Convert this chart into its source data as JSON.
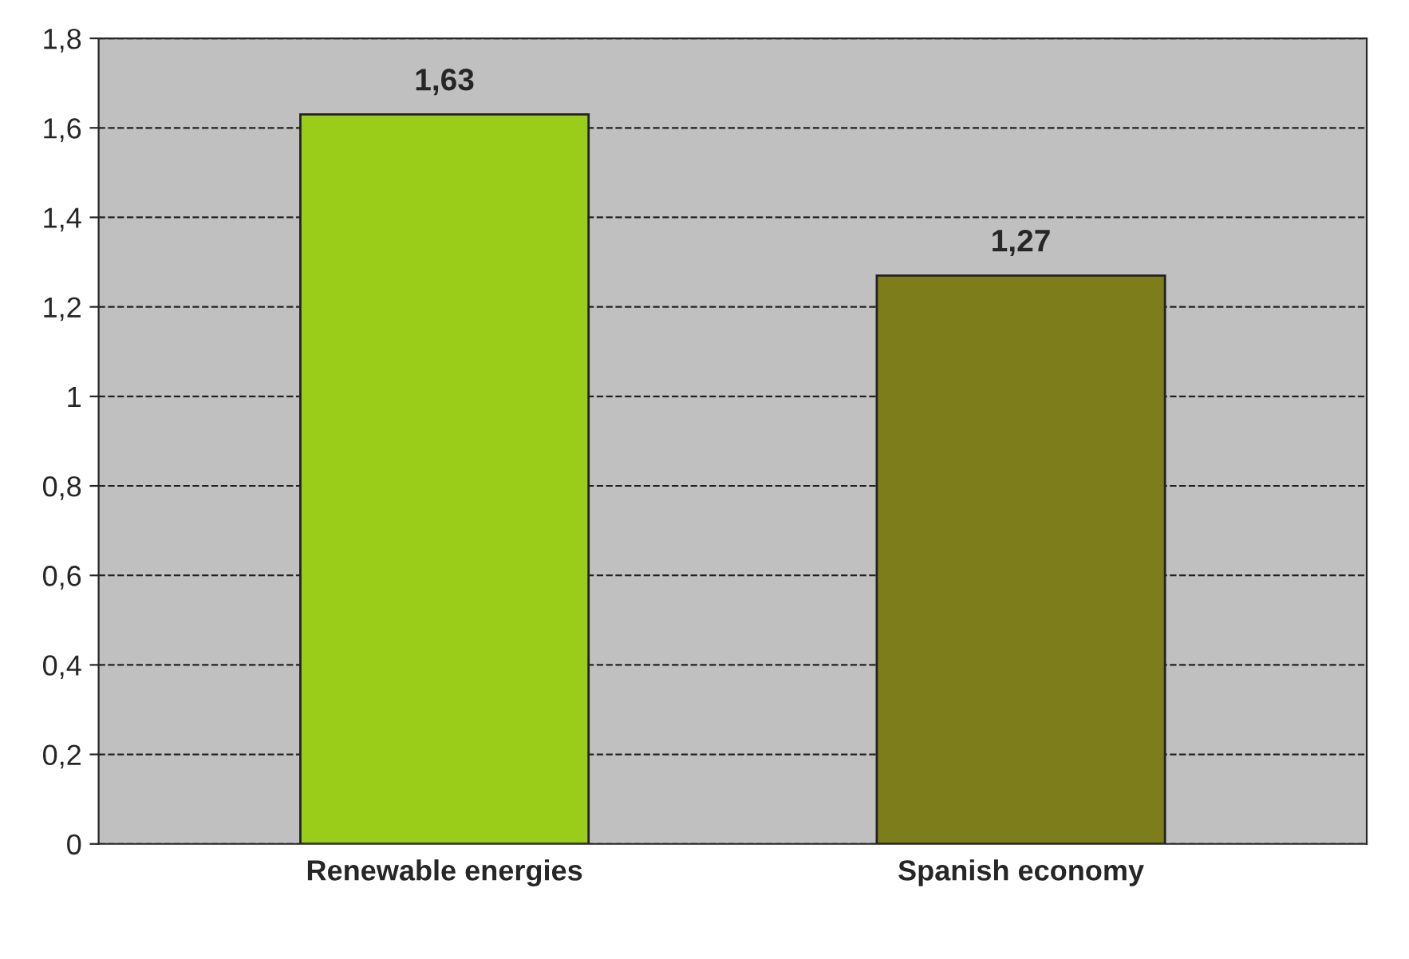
{
  "chart_data": {
    "type": "bar",
    "categories": [
      "Renewable energies",
      "Spanish economy"
    ],
    "values": [
      1.63,
      1.27
    ],
    "colors": [
      "#9acd1a",
      "#7d7d1c"
    ],
    "value_labels": [
      "1,63",
      "1,27"
    ],
    "ylim": [
      0,
      1.8
    ],
    "yticks": [
      0,
      {
        "value": 0.2,
        "label": "0,2"
      },
      {
        "value": 0.4,
        "label": "0,4"
      },
      {
        "value": 0.6,
        "label": "0,6"
      },
      {
        "value": 0.8,
        "label": "0,8"
      },
      1,
      {
        "value": 1.2,
        "label": "1,2"
      },
      {
        "value": 1.4,
        "label": "1,4"
      },
      {
        "value": 1.6,
        "label": "1,6"
      },
      {
        "value": 1.8,
        "label": "1,8"
      }
    ],
    "grid": "y",
    "legend": false
  }
}
